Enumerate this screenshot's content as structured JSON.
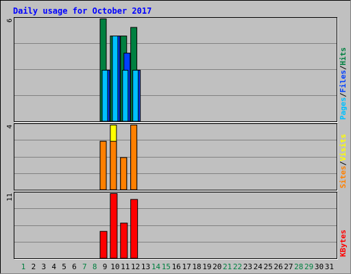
{
  "title": "Daily usage for October 2017",
  "colors": {
    "background": "#c0c0c0",
    "frame": "#000000",
    "title": "#0000ff",
    "hits": "#008040",
    "files": "#0040ff",
    "pages": "#00c0ff",
    "visits": "#ffff00",
    "sites": "#ff8000",
    "kbytes": "#ff0000",
    "weekend_day": "#008040",
    "weekday": "#000000"
  },
  "chart_data": [
    {
      "type": "bar",
      "panel": "hits-files-pages",
      "scale_max": 6,
      "scale_label": "6",
      "legend": [
        {
          "name": "Pages",
          "color": "#00c0ff"
        },
        {
          "name": "/",
          "color": "#000000"
        },
        {
          "name": "Files",
          "color": "#0040ff"
        },
        {
          "name": "/",
          "color": "#000000"
        },
        {
          "name": "Hits",
          "color": "#008040"
        }
      ],
      "categories": [
        "1",
        "2",
        "3",
        "4",
        "5",
        "6",
        "7",
        "8",
        "9",
        "10",
        "11",
        "12",
        "13",
        "14",
        "15",
        "16",
        "17",
        "18",
        "19",
        "20",
        "21",
        "22",
        "23",
        "24",
        "25",
        "26",
        "27",
        "28",
        "29",
        "30",
        "31"
      ],
      "series": [
        {
          "name": "Hits",
          "values": [
            0,
            0,
            0,
            0,
            6,
            5,
            5,
            5.5,
            0,
            0,
            0,
            0,
            0,
            0,
            0,
            0,
            0,
            0,
            0,
            0,
            0,
            0,
            0,
            0,
            0,
            0,
            0,
            0,
            0,
            0,
            0
          ]
        },
        {
          "name": "Files",
          "values": [
            0,
            0,
            0,
            0,
            3,
            5,
            4,
            3,
            0,
            0,
            0,
            0,
            0,
            0,
            0,
            0,
            0,
            0,
            0,
            0,
            0,
            0,
            0,
            0,
            0,
            0,
            0,
            0,
            0,
            0,
            0
          ]
        },
        {
          "name": "Pages",
          "values": [
            0,
            0,
            0,
            0,
            3,
            5,
            3,
            3,
            0,
            0,
            0,
            0,
            0,
            0,
            0,
            0,
            0,
            0,
            0,
            0,
            0,
            0,
            0,
            0,
            0,
            0,
            0,
            0,
            0,
            0,
            0
          ]
        }
      ]
    },
    {
      "type": "bar",
      "panel": "visits-sites",
      "scale_max": 4,
      "scale_label": "4",
      "legend": [
        {
          "name": "Sites",
          "color": "#ff8000"
        },
        {
          "name": "/",
          "color": "#000000"
        },
        {
          "name": "Visits",
          "color": "#ffff00"
        }
      ],
      "series": [
        {
          "name": "Visits",
          "values": [
            0,
            0,
            0,
            0,
            3,
            4,
            2,
            3,
            0,
            0,
            0,
            0,
            0,
            0,
            0,
            0,
            0,
            0,
            0,
            0,
            0,
            0,
            0,
            0,
            0,
            0,
            0,
            0,
            0,
            0,
            0
          ]
        },
        {
          "name": "Sites",
          "values": [
            0,
            0,
            0,
            0,
            3,
            3,
            2,
            4,
            0,
            0,
            0,
            0,
            0,
            0,
            0,
            0,
            0,
            0,
            0,
            0,
            0,
            0,
            0,
            0,
            0,
            0,
            0,
            0,
            0,
            0,
            0
          ]
        }
      ]
    },
    {
      "type": "bar",
      "panel": "kbytes",
      "scale_max": 11,
      "scale_label": "11",
      "legend": [
        {
          "name": "KBytes",
          "color": "#ff0000"
        }
      ],
      "series": [
        {
          "name": "KBytes",
          "values": [
            0,
            0,
            0,
            0,
            4.6,
            11,
            6,
            10,
            0,
            0,
            0,
            0,
            0,
            0,
            0,
            0,
            0,
            0,
            0,
            0,
            0,
            0,
            0,
            0,
            0,
            0,
            0,
            0,
            0,
            0,
            0
          ]
        }
      ]
    }
  ],
  "weekend_days": [
    "1",
    "7",
    "8",
    "14",
    "15",
    "21",
    "22",
    "28",
    "29"
  ]
}
